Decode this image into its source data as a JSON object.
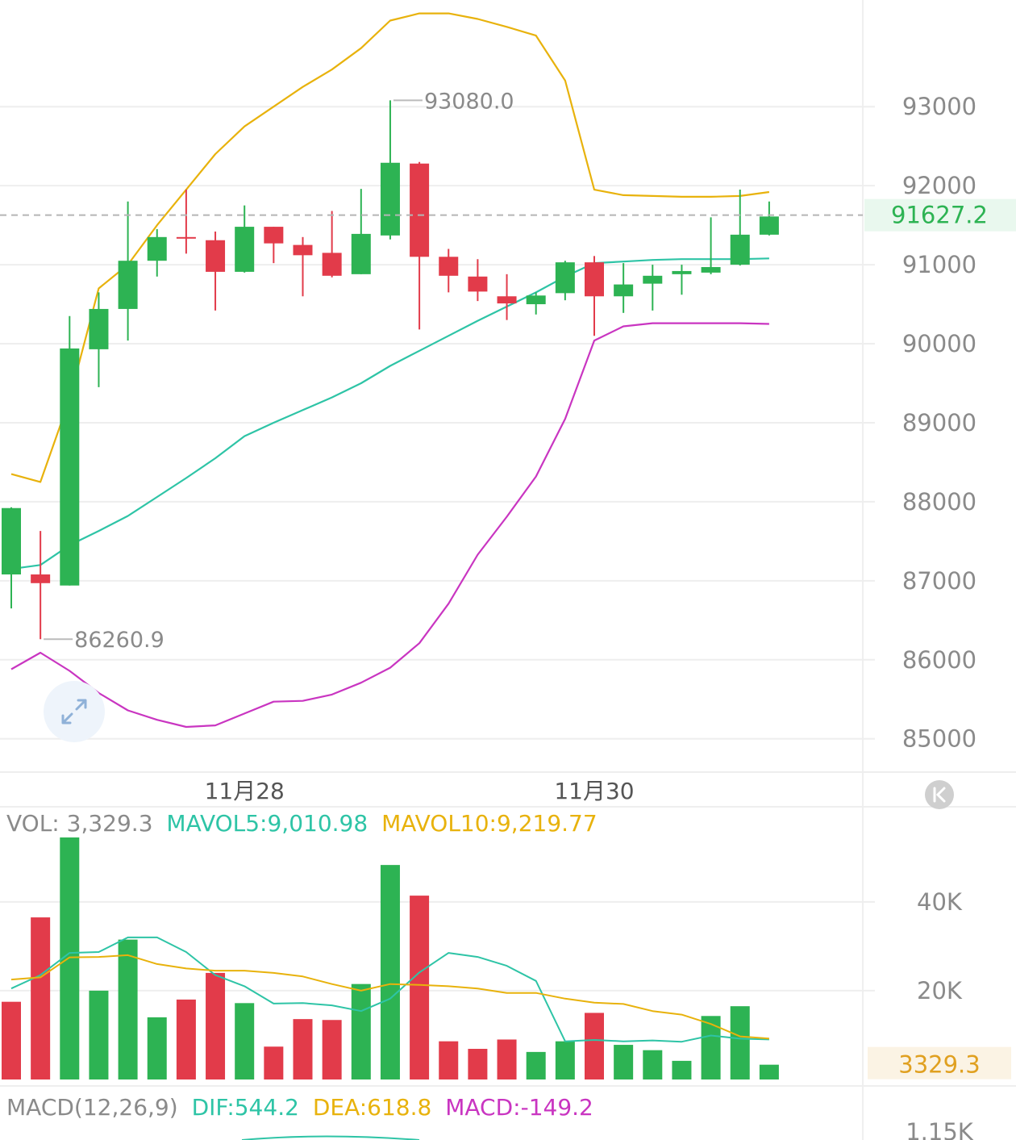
{
  "colors": {
    "up": "#2db353",
    "down": "#e23b4a",
    "boll_upper": "#e8b20c",
    "boll_mid": "#2ec4a6",
    "boll_lower": "#c935c1",
    "grid": "#eeeeee",
    "dash": "#b5b5b5",
    "axis_text": "#8a8a8a",
    "last_price_bg": "#e9f8ee",
    "vol_label_bg": "#fbf3e4"
  },
  "chart_data": [
    {
      "type": "candlestick",
      "name": "price",
      "y_ticks": [
        "93000",
        "92000",
        "91000",
        "90000",
        "89000",
        "88000",
        "87000",
        "86000",
        "85000"
      ],
      "y_tick_values": [
        93000,
        92000,
        91000,
        90000,
        89000,
        88000,
        87000,
        86000,
        85000
      ],
      "ylim": [
        84650,
        94350
      ],
      "x_ticks": [
        {
          "label": "11月28",
          "index": 8
        },
        {
          "label": "11月30",
          "index": 20
        }
      ],
      "last_price": 91627.2,
      "last_price_label": "91627.2",
      "high_marker": {
        "label": "93080.0",
        "value": 93080.0,
        "index": 13
      },
      "low_marker": {
        "label": "86260.9",
        "value": 86260.9,
        "index": 1
      },
      "candles": [
        {
          "o": 87080,
          "h": 87930,
          "l": 86650,
          "c": 87920
        },
        {
          "o": 87080,
          "h": 87630,
          "l": 86260.9,
          "c": 86970
        },
        {
          "o": 86940,
          "h": 90350,
          "l": 86940,
          "c": 89940
        },
        {
          "o": 89930,
          "h": 90650,
          "l": 89450,
          "c": 90440
        },
        {
          "o": 90440,
          "h": 91800,
          "l": 90040,
          "c": 91050
        },
        {
          "o": 91050,
          "h": 91450,
          "l": 90850,
          "c": 91350
        },
        {
          "o": 91350,
          "h": 91950,
          "l": 91140,
          "c": 91330
        },
        {
          "o": 91310,
          "h": 91420,
          "l": 90420,
          "c": 90910
        },
        {
          "o": 90910,
          "h": 91750,
          "l": 90900,
          "c": 91480
        },
        {
          "o": 91480,
          "h": 91480,
          "l": 91020,
          "c": 91270
        },
        {
          "o": 91250,
          "h": 91350,
          "l": 90600,
          "c": 91120
        },
        {
          "o": 91150,
          "h": 91680,
          "l": 90840,
          "c": 90860
        },
        {
          "o": 90880,
          "h": 91960,
          "l": 90880,
          "c": 91390
        },
        {
          "o": 91370,
          "h": 93080,
          "l": 91320,
          "c": 92290
        },
        {
          "o": 92280,
          "h": 92300,
          "l": 90180,
          "c": 91100
        },
        {
          "o": 91100,
          "h": 91200,
          "l": 90650,
          "c": 90860
        },
        {
          "o": 90850,
          "h": 91070,
          "l": 90540,
          "c": 90660
        },
        {
          "o": 90600,
          "h": 90880,
          "l": 90300,
          "c": 90510
        },
        {
          "o": 90500,
          "h": 90650,
          "l": 90370,
          "c": 90610
        },
        {
          "o": 90640,
          "h": 91050,
          "l": 90550,
          "c": 91030
        },
        {
          "o": 91030,
          "h": 91110,
          "l": 90100,
          "c": 90600
        },
        {
          "o": 90600,
          "h": 91020,
          "l": 90390,
          "c": 90750
        },
        {
          "o": 90760,
          "h": 91000,
          "l": 90420,
          "c": 90860
        },
        {
          "o": 90880,
          "h": 91000,
          "l": 90620,
          "c": 90920
        },
        {
          "o": 90900,
          "h": 91600,
          "l": 90880,
          "c": 90970
        },
        {
          "o": 91000,
          "h": 91950,
          "l": 90990,
          "c": 91380
        },
        {
          "o": 91380,
          "h": 91800,
          "l": 91370,
          "c": 91610
        }
      ],
      "boll_upper": [
        88350,
        88250,
        89300,
        90700,
        91000,
        91500,
        91950,
        92400,
        92750,
        93000,
        93250,
        93470,
        93740,
        94090,
        94180,
        94180,
        94110,
        94010,
        93900,
        93330,
        91950,
        91880,
        91870,
        91860,
        91860,
        91870,
        91920
      ],
      "boll_mid": [
        87150,
        87200,
        87450,
        87630,
        87820,
        88060,
        88300,
        88550,
        88830,
        89000,
        89160,
        89320,
        89500,
        89720,
        89910,
        90100,
        90290,
        90470,
        90650,
        90850,
        91020,
        91040,
        91060,
        91070,
        91070,
        91070,
        91080
      ],
      "boll_lower": [
        85880,
        86090,
        85860,
        85580,
        85360,
        85240,
        85150,
        85170,
        85320,
        85470,
        85480,
        85560,
        85710,
        85900,
        86210,
        86710,
        87330,
        87810,
        88320,
        89050,
        90040,
        90220,
        90260,
        90260,
        90260,
        90260,
        90250
      ]
    },
    {
      "type": "bar",
      "name": "volume",
      "legend": {
        "vol": "VOL: 3,329.3",
        "ma5": "MAVOL5:9,010.98",
        "ma10": "MAVOL10:9,219.77"
      },
      "y_ticks": [
        "40K",
        "20K"
      ],
      "y_tick_values": [
        40000,
        20000
      ],
      "ylim": [
        0,
        54500
      ],
      "last_value": 3329.3,
      "last_label": "3329.3",
      "values": [
        17500,
        36500,
        54500,
        20000,
        31500,
        14000,
        18000,
        24000,
        17200,
        7400,
        13600,
        13400,
        21500,
        48300,
        41400,
        8600,
        6900,
        9000,
        6200,
        8600,
        15000,
        7800,
        6600,
        4200,
        14300,
        16500,
        3329.3
      ],
      "up": [
        false,
        false,
        true,
        true,
        true,
        true,
        false,
        false,
        true,
        false,
        false,
        false,
        true,
        true,
        false,
        false,
        false,
        false,
        true,
        true,
        false,
        true,
        true,
        true,
        true,
        true,
        true
      ],
      "mavol5": [
        20500,
        23500,
        28500,
        28700,
        32000,
        32000,
        28700,
        23500,
        21000,
        17100,
        17200,
        16700,
        15400,
        18200,
        24100,
        28500,
        27600,
        25600,
        22200,
        8600,
        8900,
        8600,
        8800,
        8500,
        9900,
        9200,
        9010.98
      ],
      "mavol10": [
        22500,
        23000,
        27500,
        27600,
        28000,
        26000,
        25000,
        24500,
        24500,
        24000,
        23200,
        21500,
        20000,
        21500,
        21300,
        21000,
        20500,
        19500,
        19500,
        18200,
        17300,
        17000,
        15400,
        14600,
        12500,
        9700,
        9219.77
      ]
    },
    {
      "type": "line",
      "name": "macd",
      "legend": {
        "title": "MACD(12,26,9)",
        "dif": "DIF:544.2",
        "dea": "DEA:618.8",
        "macd": "MACD:-149.2"
      },
      "y_ticks": [
        "1.15K"
      ],
      "y_tick_values": [
        1150
      ]
    }
  ],
  "widgets": {
    "expand_icon": "expand-arrows-icon",
    "collapse_button_icon": "k-chevron-icon"
  }
}
